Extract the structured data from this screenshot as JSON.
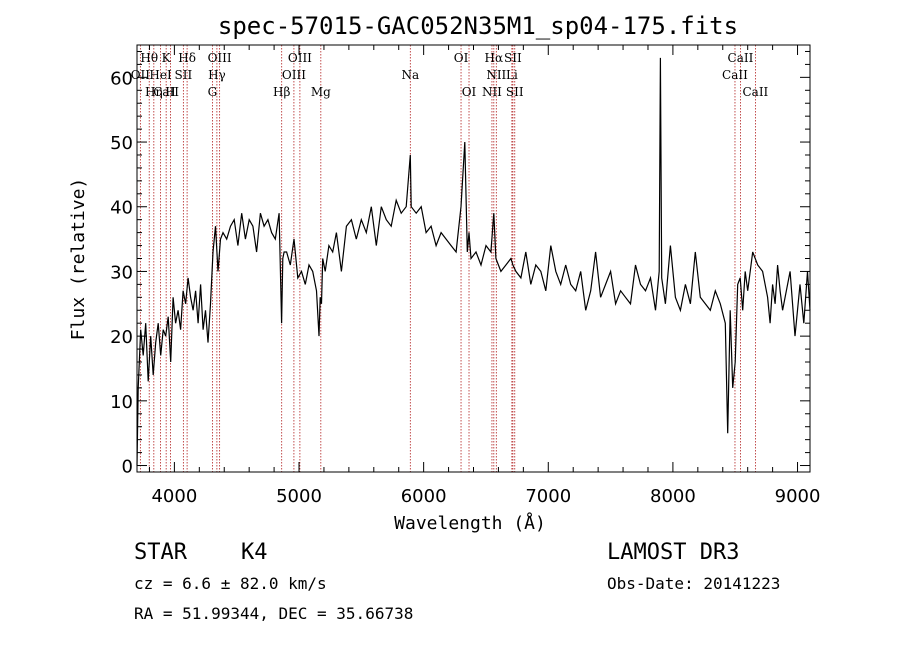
{
  "chart_data": {
    "type": "line",
    "title": "spec-57015-GAC052N35M1_sp04-175.fits",
    "xlabel": "Wavelength (Å)",
    "ylabel": "Flux (relative)",
    "xlim": [
      3700,
      9100
    ],
    "ylim": [
      -1,
      65
    ],
    "xticks": [
      4000,
      5000,
      6000,
      7000,
      8000,
      9000
    ],
    "yticks": [
      0,
      10,
      20,
      30,
      40,
      50,
      60
    ],
    "series": [
      {
        "name": "flux",
        "x": [
          3700,
          3710,
          3730,
          3750,
          3770,
          3790,
          3810,
          3830,
          3850,
          3870,
          3890,
          3910,
          3930,
          3950,
          3970,
          3990,
          4010,
          4030,
          4050,
          4070,
          4090,
          4110,
          4130,
          4150,
          4170,
          4190,
          4210,
          4230,
          4250,
          4270,
          4290,
          4310,
          4330,
          4350,
          4370,
          4390,
          4420,
          4450,
          4480,
          4510,
          4540,
          4570,
          4600,
          4630,
          4660,
          4690,
          4720,
          4750,
          4780,
          4810,
          4840,
          4860,
          4870,
          4880,
          4900,
          4930,
          4960,
          4990,
          5020,
          5050,
          5080,
          5110,
          5140,
          5160,
          5170,
          5180,
          5190,
          5210,
          5240,
          5270,
          5300,
          5340,
          5380,
          5420,
          5460,
          5500,
          5540,
          5580,
          5620,
          5660,
          5700,
          5740,
          5780,
          5820,
          5860,
          5893,
          5900,
          5940,
          5980,
          6020,
          6060,
          6100,
          6140,
          6180,
          6220,
          6260,
          6300,
          6330,
          6350,
          6364,
          6380,
          6420,
          6460,
          6500,
          6540,
          6563,
          6580,
          6620,
          6660,
          6700,
          6716,
          6740,
          6780,
          6820,
          6860,
          6900,
          6940,
          6980,
          7020,
          7060,
          7100,
          7140,
          7180,
          7220,
          7260,
          7300,
          7340,
          7380,
          7420,
          7460,
          7500,
          7540,
          7580,
          7620,
          7660,
          7700,
          7740,
          7780,
          7820,
          7860,
          7890,
          7900,
          7910,
          7940,
          7980,
          8020,
          8060,
          8100,
          8140,
          8180,
          8220,
          8260,
          8300,
          8340,
          8380,
          8420,
          8440,
          8460,
          8480,
          8500,
          8520,
          8540,
          8560,
          8580,
          8600,
          8640,
          8680,
          8720,
          8760,
          8780,
          8800,
          8820,
          8840,
          8860,
          8880,
          8900,
          8940,
          8980,
          9020,
          9050,
          9080,
          9100
        ],
        "y": [
          0,
          12,
          21,
          17,
          22,
          13,
          20,
          14,
          19,
          22,
          17,
          21,
          20,
          23,
          16,
          26,
          22,
          24,
          21,
          27,
          25,
          29,
          26,
          24,
          27,
          22,
          28,
          21,
          24,
          19,
          25,
          33,
          37,
          30,
          35,
          36,
          35,
          37,
          38,
          34,
          39,
          35,
          38,
          37,
          33,
          39,
          37,
          38,
          36,
          35,
          39,
          22,
          32,
          33,
          33,
          31,
          35,
          29,
          30,
          28,
          31,
          30,
          27,
          20,
          26,
          25,
          32,
          30,
          34,
          33,
          36,
          30,
          37,
          38,
          35,
          38,
          36,
          40,
          34,
          40,
          38,
          37,
          41,
          39,
          40,
          48,
          40,
          39,
          40,
          36,
          37,
          34,
          36,
          35,
          34,
          33,
          40,
          50,
          33,
          36,
          32,
          33,
          31,
          34,
          33,
          39,
          32,
          30,
          31,
          32,
          31,
          30,
          29,
          33,
          28,
          31,
          30,
          27,
          34,
          30,
          28,
          31,
          28,
          27,
          30,
          24,
          27,
          33,
          26,
          28,
          30,
          25,
          27,
          26,
          25,
          31,
          28,
          27,
          29,
          24,
          30,
          63,
          29,
          25,
          34,
          26,
          24,
          28,
          25,
          33,
          26,
          25,
          24,
          27,
          25,
          22,
          5,
          24,
          12,
          16,
          28,
          29,
          24,
          30,
          27,
          33,
          31,
          30,
          26,
          22,
          28,
          25,
          31,
          27,
          24,
          26,
          30,
          20,
          28,
          22,
          30,
          24
        ]
      }
    ],
    "line_markers": [
      {
        "label": "Hθ",
        "wavelength": 3798,
        "row": 1
      },
      {
        "label": "OII",
        "wavelength": 3727,
        "row": 2
      },
      {
        "label": "CaII",
        "wavelength": 3934,
        "row": 3
      },
      {
        "label": "K",
        "wavelength": 3934,
        "row": 1
      },
      {
        "label": "HeI",
        "wavelength": 3889,
        "row": 2
      },
      {
        "label": "Hη",
        "wavelength": 3835,
        "row": 3
      },
      {
        "label": "SII",
        "wavelength": 4072,
        "row": 2
      },
      {
        "label": "H",
        "wavelength": 3969,
        "row": 3
      },
      {
        "label": "Hδ",
        "wavelength": 4102,
        "row": 1
      },
      {
        "label": "OIII",
        "wavelength": 4363,
        "row": 1
      },
      {
        "label": "Hγ",
        "wavelength": 4341,
        "row": 2
      },
      {
        "label": "G",
        "wavelength": 4305,
        "row": 3
      },
      {
        "label": "OIII",
        "wavelength": 5007,
        "row": 1
      },
      {
        "label": "OIII",
        "wavelength": 4959,
        "row": 2
      },
      {
        "label": "Hβ",
        "wavelength": 4861,
        "row": 3
      },
      {
        "label": "Mg",
        "wavelength": 5175,
        "row": 3
      },
      {
        "label": "Na",
        "wavelength": 5893,
        "row": 2
      },
      {
        "label": "OI",
        "wavelength": 6300,
        "row": 1
      },
      {
        "label": "OI",
        "wavelength": 6364,
        "row": 3
      },
      {
        "label": "Hα",
        "wavelength": 6563,
        "row": 1
      },
      {
        "label": "SII",
        "wavelength": 6716,
        "row": 1
      },
      {
        "label": "NII",
        "wavelength": 6583,
        "row": 2
      },
      {
        "label": "Li",
        "wavelength": 6708,
        "row": 2
      },
      {
        "label": "NII",
        "wavelength": 6548,
        "row": 3
      },
      {
        "label": "SII",
        "wavelength": 6731,
        "row": 3
      },
      {
        "label": "CaII",
        "wavelength": 8542,
        "row": 1
      },
      {
        "label": "CaII",
        "wavelength": 8498,
        "row": 2
      },
      {
        "label": "CaII",
        "wavelength": 8662,
        "row": 3
      }
    ]
  },
  "info": {
    "object_type": "STAR",
    "subclass": "K4",
    "survey": "LAMOST DR3",
    "redshift": "cz = 6.6 ± 82.0 km/s",
    "obs_date": "Obs-Date: 20141223",
    "coords": "RA =  51.99344, DEC =  35.66738"
  },
  "colors": {
    "marker_line": "#b22222",
    "axis": "#000000",
    "spectrum": "#000000"
  }
}
